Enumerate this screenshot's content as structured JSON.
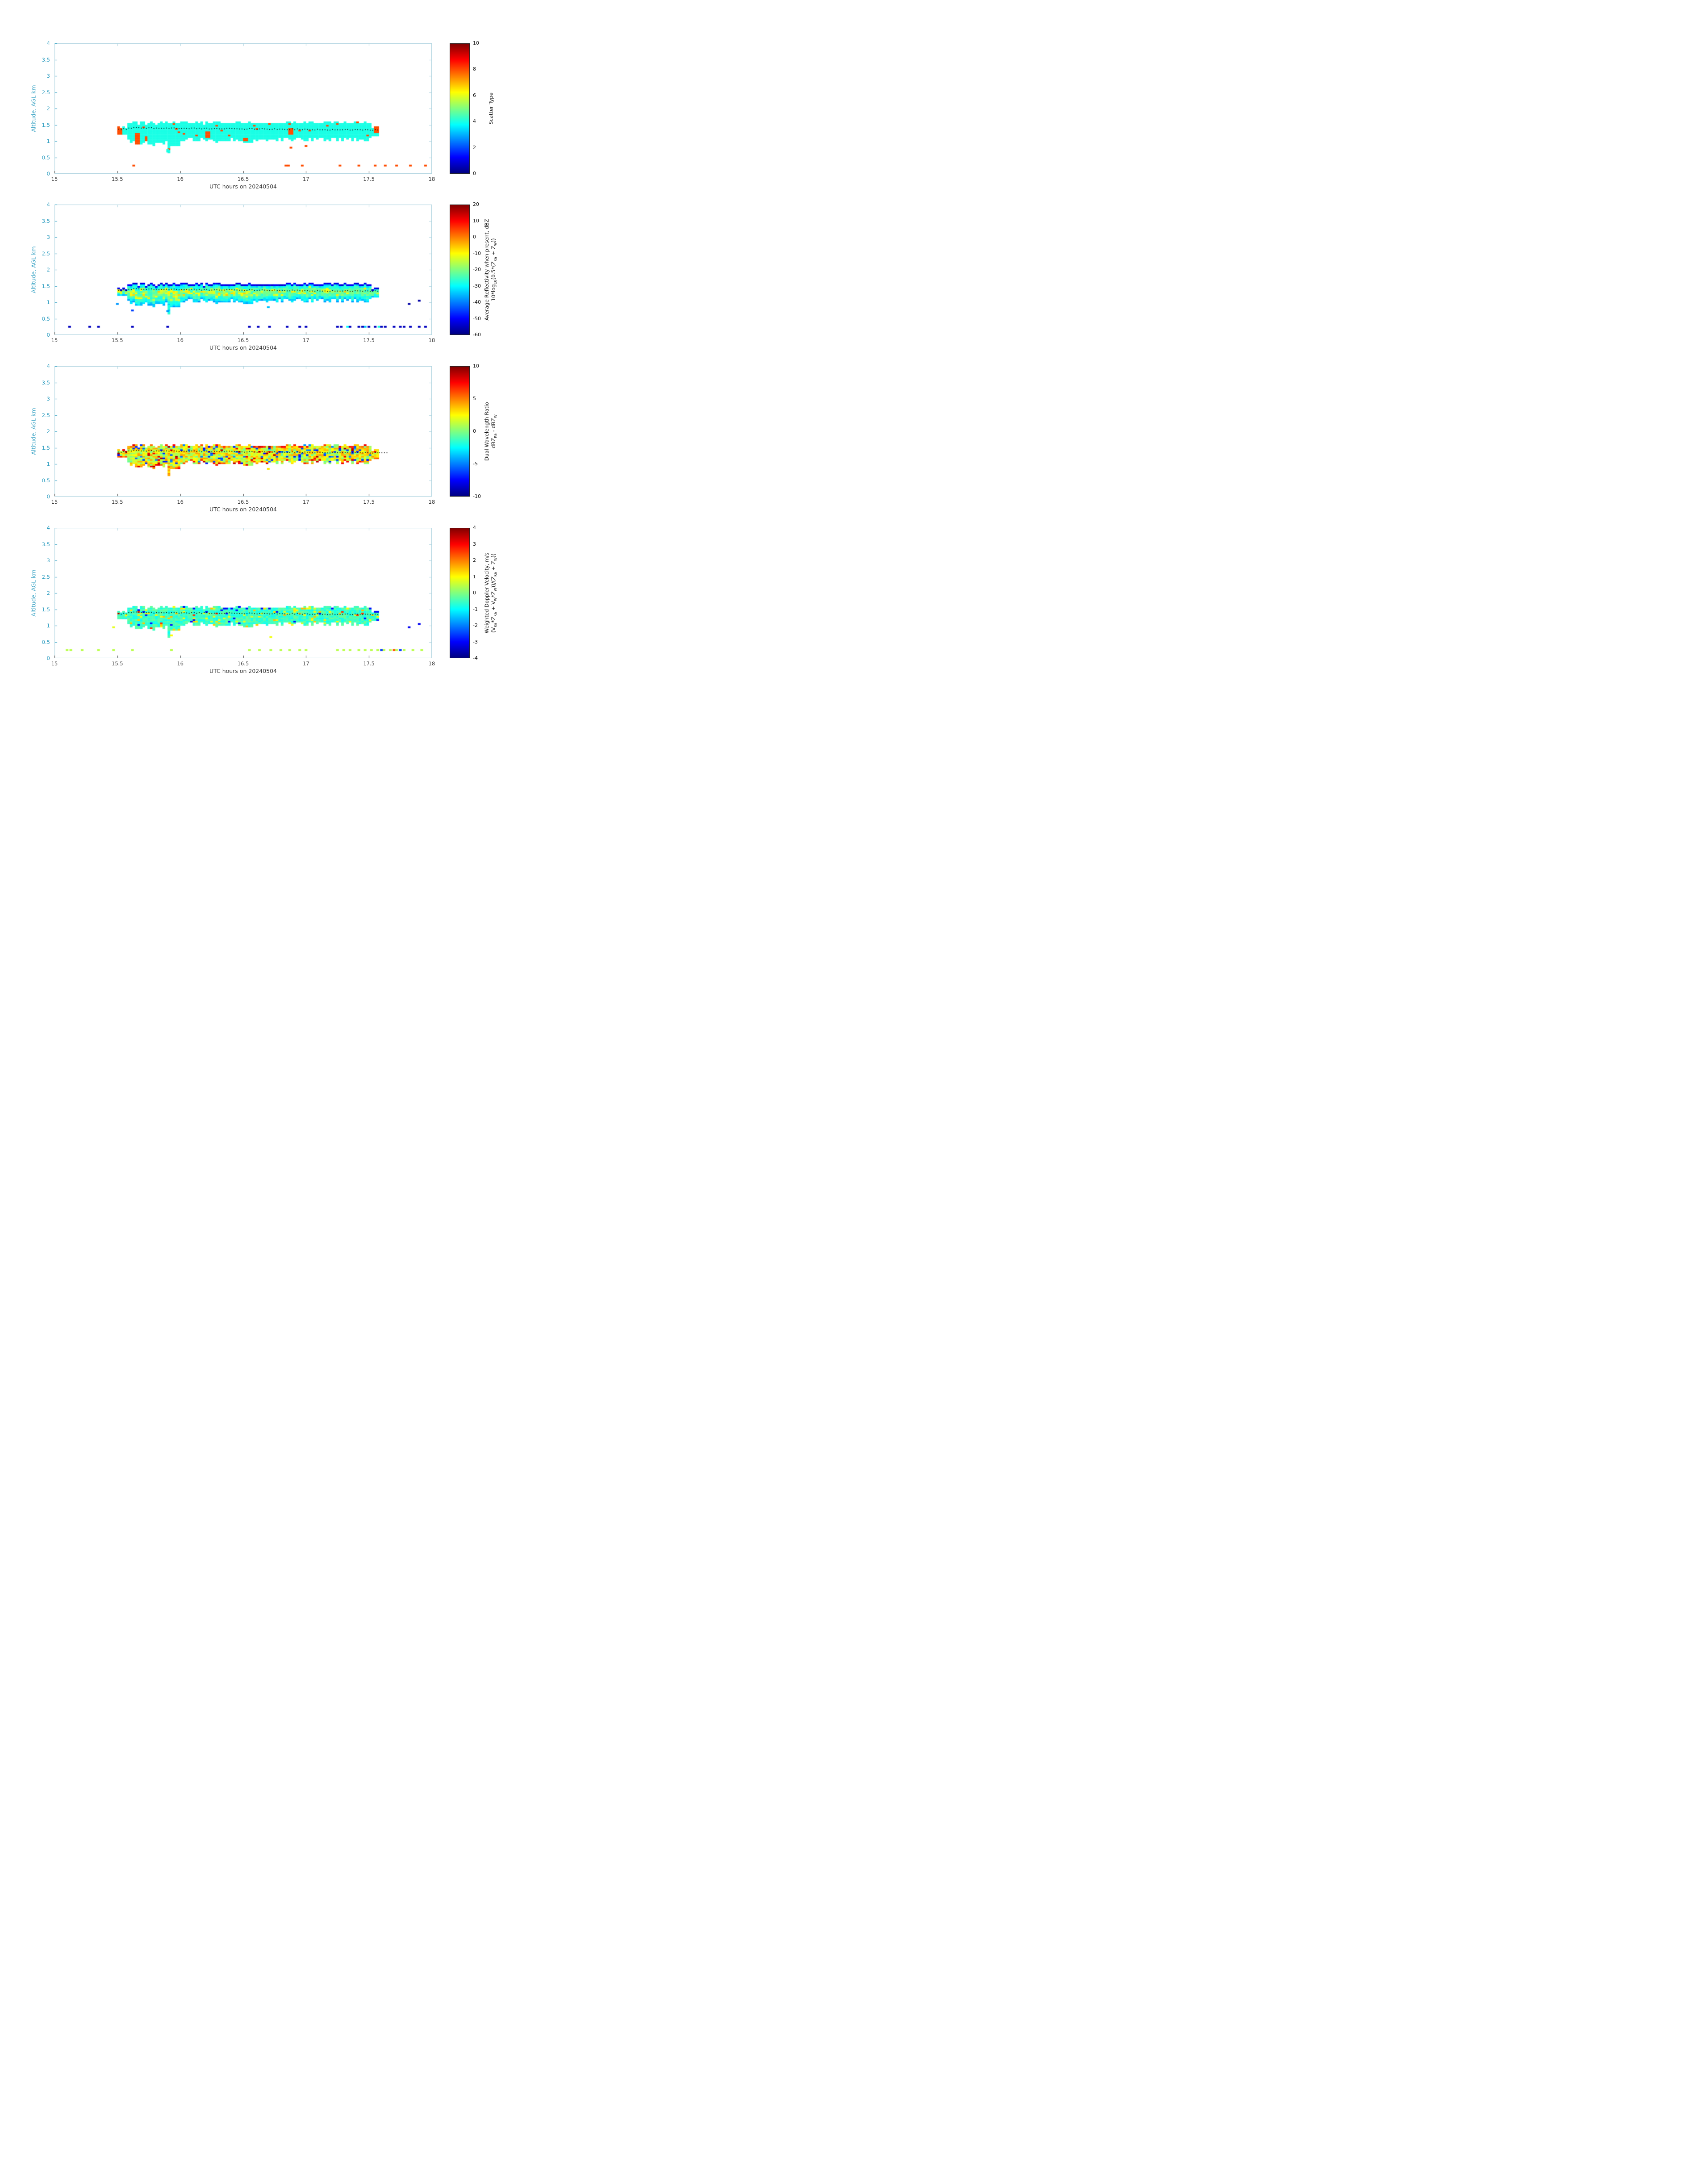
{
  "figure": {
    "background": "#ffffff",
    "axis_box_color": "#aed3df",
    "y_tick_label_color": "#2f9ec1",
    "x_tick_label_color": "#3a3a3a",
    "colorbar_tick_label_color": "#111111",
    "overlay_dot_color": "#000000",
    "date": "20240504"
  },
  "cloud": {
    "t_start": 15.5,
    "t_end": 17.56,
    "dt": 0.02,
    "dz": 0.05,
    "typical_base_km": 1.04,
    "typical_top_km": 1.57,
    "mean_line_start_km": 1.41,
    "mean_line_end_km": 1.34,
    "surface_dots_km": 0.25
  },
  "chart_data": [
    {
      "type": "heatmap",
      "panel": "scatter_type",
      "xlabel": "UTC hours on 20240504",
      "ylabel": "Altitude, AGL km",
      "xlim": [
        15,
        18
      ],
      "ylim": [
        0,
        4
      ],
      "xtick_values": [
        15,
        15.5,
        16,
        16.5,
        17,
        17.5,
        18
      ],
      "xtick_labels": [
        "15",
        "15.5",
        "16",
        "16.5",
        "17",
        "17.5",
        "18"
      ],
      "ytick_values": [
        0,
        0.5,
        1,
        1.5,
        2,
        2.5,
        3,
        3.5,
        4
      ],
      "ytick_labels": [
        "0",
        "0.5",
        "1",
        "1.5",
        "2",
        "2.5",
        "3",
        "3.5",
        "4"
      ],
      "colormap": "jet",
      "colorbar": {
        "min": 0,
        "max": 10,
        "tick_values": [
          0,
          2,
          4,
          6,
          8,
          10
        ],
        "tick_labels": [
          "0",
          "2",
          "4",
          "6",
          "8",
          "10"
        ],
        "label_lines": [
          [
            {
              "t": "Scatter Type"
            }
          ]
        ]
      },
      "overlay_line": {
        "style": "dotted",
        "color": "#000000",
        "meaning": "mean cloud altitude"
      },
      "seed": 11,
      "model": {
        "kind": "categorical",
        "main": 4,
        "anomaly": 8,
        "anomaly_frac": 0.015,
        "anomaly_clusters": [
          [
            15.49,
            15.53,
            1.1,
            1.5
          ],
          [
            15.62,
            15.66,
            0.9,
            1.25
          ],
          [
            15.7,
            15.72,
            1.0,
            1.15
          ],
          [
            16.19,
            16.23,
            1.1,
            1.3
          ],
          [
            16.49,
            16.52,
            1.0,
            1.12
          ],
          [
            16.84,
            16.88,
            1.2,
            1.38
          ],
          [
            17.52,
            17.57,
            1.25,
            1.45
          ]
        ]
      },
      "surface_dots": {
        "z": 0.25,
        "value": 8,
        "times": [
          15.63,
          16.84,
          16.86,
          16.97,
          17.27,
          17.42,
          17.55,
          17.63,
          17.72,
          17.83,
          17.95
        ]
      },
      "extra_pixels": [
        [
          16.88,
          0.8,
          8
        ],
        [
          17.0,
          0.85,
          8
        ],
        [
          15.9,
          0.68,
          4
        ],
        [
          15.9,
          0.73,
          4
        ]
      ]
    },
    {
      "type": "heatmap",
      "panel": "average_reflectivity",
      "xlabel": "UTC hours on 20240504",
      "ylabel": "Altitude, AGL km",
      "xlim": [
        15,
        18
      ],
      "ylim": [
        0,
        4
      ],
      "xtick_values": [
        15,
        15.5,
        16,
        16.5,
        17,
        17.5,
        18
      ],
      "xtick_labels": [
        "15",
        "15.5",
        "16",
        "16.5",
        "17",
        "17.5",
        "18"
      ],
      "ytick_values": [
        0,
        0.5,
        1,
        1.5,
        2,
        2.5,
        3,
        3.5,
        4
      ],
      "ytick_labels": [
        "0",
        "0.5",
        "1",
        "1.5",
        "2",
        "2.5",
        "3",
        "3.5",
        "4"
      ],
      "colormap": "jet",
      "colorbar": {
        "min": -60,
        "max": 20,
        "tick_values": [
          -60,
          -50,
          -40,
          -30,
          -20,
          -10,
          0,
          10,
          20
        ],
        "tick_labels": [
          "-60",
          "-50",
          "-40",
          "-30",
          "-20",
          "-10",
          "0",
          "10",
          "20"
        ],
        "label_lines": [
          [
            {
              "t": "Average Reflectivity when present, dBZ"
            }
          ],
          [
            {
              "t": "10*log"
            },
            {
              "s": "10"
            },
            {
              "t": "(0.5*(Z"
            },
            {
              "s": "Ka"
            },
            {
              "t": " + Z"
            },
            {
              "s": "W"
            },
            {
              "t": "))"
            }
          ]
        ]
      },
      "overlay_line": {
        "style": "dotted",
        "color": "#000000",
        "meaning": "mean cloud altitude"
      },
      "seed": 22,
      "model": {
        "kind": "reflectivity",
        "top_edge": -52,
        "interior_base": -45,
        "interior_peak": -22,
        "noise": 4,
        "bright_patch": 11,
        "bright_t_max": 16.6,
        "bright_prob": 0.4,
        "late_bright_prob": 0.15
      },
      "surface_dots": {
        "z": 0.25,
        "value": -55,
        "times": [
          15.12,
          15.28,
          15.35,
          15.62,
          15.9,
          16.55,
          16.62,
          16.71,
          16.85,
          16.95,
          17.0,
          17.25,
          17.28,
          17.35,
          17.42,
          17.45,
          17.5,
          17.55,
          17.6,
          17.63,
          17.7,
          17.75,
          17.78,
          17.83,
          17.9,
          17.95
        ]
      },
      "extra_pixels": [
        [
          15.5,
          0.95,
          -38
        ],
        [
          15.62,
          0.75,
          -45
        ],
        [
          15.9,
          0.73,
          -38
        ],
        [
          16.7,
          0.85,
          -35
        ],
        [
          17.82,
          0.95,
          -57
        ],
        [
          17.9,
          1.05,
          -57
        ],
        [
          17.33,
          0.25,
          -30
        ],
        [
          17.47,
          0.25,
          -34
        ],
        [
          17.58,
          0.25,
          -28
        ]
      ]
    },
    {
      "type": "heatmap",
      "panel": "dual_wavelength_ratio",
      "xlabel": "UTC hours on 20240504",
      "ylabel": "Altitude, AGL km",
      "xlim": [
        15,
        18
      ],
      "ylim": [
        0,
        4
      ],
      "xtick_values": [
        15,
        15.5,
        16,
        16.5,
        17,
        17.5,
        18
      ],
      "xtick_labels": [
        "15",
        "15.5",
        "16",
        "16.5",
        "17",
        "17.5",
        "18"
      ],
      "ytick_values": [
        0,
        0.5,
        1,
        1.5,
        2,
        2.5,
        3,
        3.5,
        4
      ],
      "ytick_labels": [
        "0",
        "0.5",
        "1",
        "1.5",
        "2",
        "2.5",
        "3",
        "3.5",
        "4"
      ],
      "colormap": "jet",
      "colorbar": {
        "min": -10,
        "max": 10,
        "tick_values": [
          -10,
          -5,
          0,
          5,
          10
        ],
        "tick_labels": [
          "-10",
          "-5",
          "0",
          "5",
          "10"
        ],
        "label_lines": [
          [
            {
              "t": "Dual Wavelength Ratio"
            }
          ],
          [
            {
              "t": "dBZ"
            },
            {
              "s": "Ka"
            },
            {
              "t": " - dBZ"
            },
            {
              "s": "W"
            }
          ]
        ]
      },
      "overlay_line": {
        "style": "dotted",
        "color": "#000000",
        "meaning": "mean cloud altitude"
      },
      "seed": 33,
      "line_extend_to": 17.64,
      "model": {
        "kind": "dwr",
        "mean": 2.0,
        "noise": 2.5,
        "bottom_boost": 4.5,
        "top_boost": 4,
        "red_frac": 0.06,
        "blue_frac": 0.1,
        "blue_val": -4.5
      },
      "extra_pixels": [
        [
          16.7,
          0.85,
          3
        ]
      ]
    },
    {
      "type": "heatmap",
      "panel": "weighted_doppler_velocity",
      "xlabel": "UTC hours on 20240504",
      "ylabel": "Altitude, AGL km",
      "xlim": [
        15,
        18
      ],
      "ylim": [
        0,
        4
      ],
      "xtick_values": [
        15,
        15.5,
        16,
        16.5,
        17,
        17.5,
        18
      ],
      "xtick_labels": [
        "15",
        "15.5",
        "16",
        "16.5",
        "17",
        "17.5",
        "18"
      ],
      "ytick_values": [
        0,
        0.5,
        1,
        1.5,
        2,
        2.5,
        3,
        3.5,
        4
      ],
      "ytick_labels": [
        "0",
        "0.5",
        "1",
        "1.5",
        "2",
        "2.5",
        "3",
        "3.5",
        "4"
      ],
      "colormap": "jet",
      "colorbar": {
        "min": -4,
        "max": 4,
        "tick_values": [
          -4,
          -3,
          -2,
          -1,
          0,
          1,
          2,
          3,
          4
        ],
        "tick_labels": [
          "-4",
          "-3",
          "-2",
          "-1",
          "0",
          "1",
          "2",
          "3",
          "4"
        ],
        "label_lines": [
          [
            {
              "t": "Weighted Doppler Velocity, m/s"
            }
          ],
          [
            {
              "t": "(V"
            },
            {
              "s": "Ka"
            },
            {
              "t": "*Z"
            },
            {
              "s": "Ka"
            },
            {
              "t": " + V"
            },
            {
              "s": "W"
            },
            {
              "t": "*Z"
            },
            {
              "s": "W"
            },
            {
              "t": "))/(Z"
            },
            {
              "s": "Ka"
            },
            {
              "t": " + Z"
            },
            {
              "s": "W"
            },
            {
              "t": "))"
            }
          ]
        ]
      },
      "overlay_line": {
        "style": "dotted",
        "color": "#000000",
        "meaning": "mean cloud altitude"
      },
      "seed": 44,
      "model": {
        "kind": "velocity",
        "mean": -0.55,
        "noise": 0.4,
        "warm_frac": 0.07,
        "warm_mean": 1.1,
        "red_frac": 0.012,
        "red_val": 2.6,
        "cold_frac": 0.025,
        "cold_val": -2.9
      },
      "surface_dots": {
        "z": 0.25,
        "value": 0.45,
        "times": [
          15.1,
          15.13,
          15.22,
          15.35,
          15.47,
          15.62,
          15.93,
          16.55,
          16.63,
          16.72,
          16.8,
          16.87,
          16.95,
          17.0,
          17.25,
          17.3,
          17.35,
          17.42,
          17.47,
          17.52,
          17.57,
          17.62,
          17.67,
          17.72,
          17.78,
          17.85,
          17.92
        ]
      },
      "extra_pixels": [
        [
          15.47,
          0.95,
          0.8
        ],
        [
          15.93,
          0.7,
          1.0
        ],
        [
          16.72,
          0.65,
          0.9
        ],
        [
          17.82,
          0.95,
          -3.1
        ],
        [
          17.9,
          1.05,
          -3.1
        ],
        [
          17.6,
          0.25,
          -2.6
        ],
        [
          17.75,
          0.25,
          -2.6
        ],
        [
          17.7,
          0.25,
          2.4
        ]
      ]
    }
  ]
}
